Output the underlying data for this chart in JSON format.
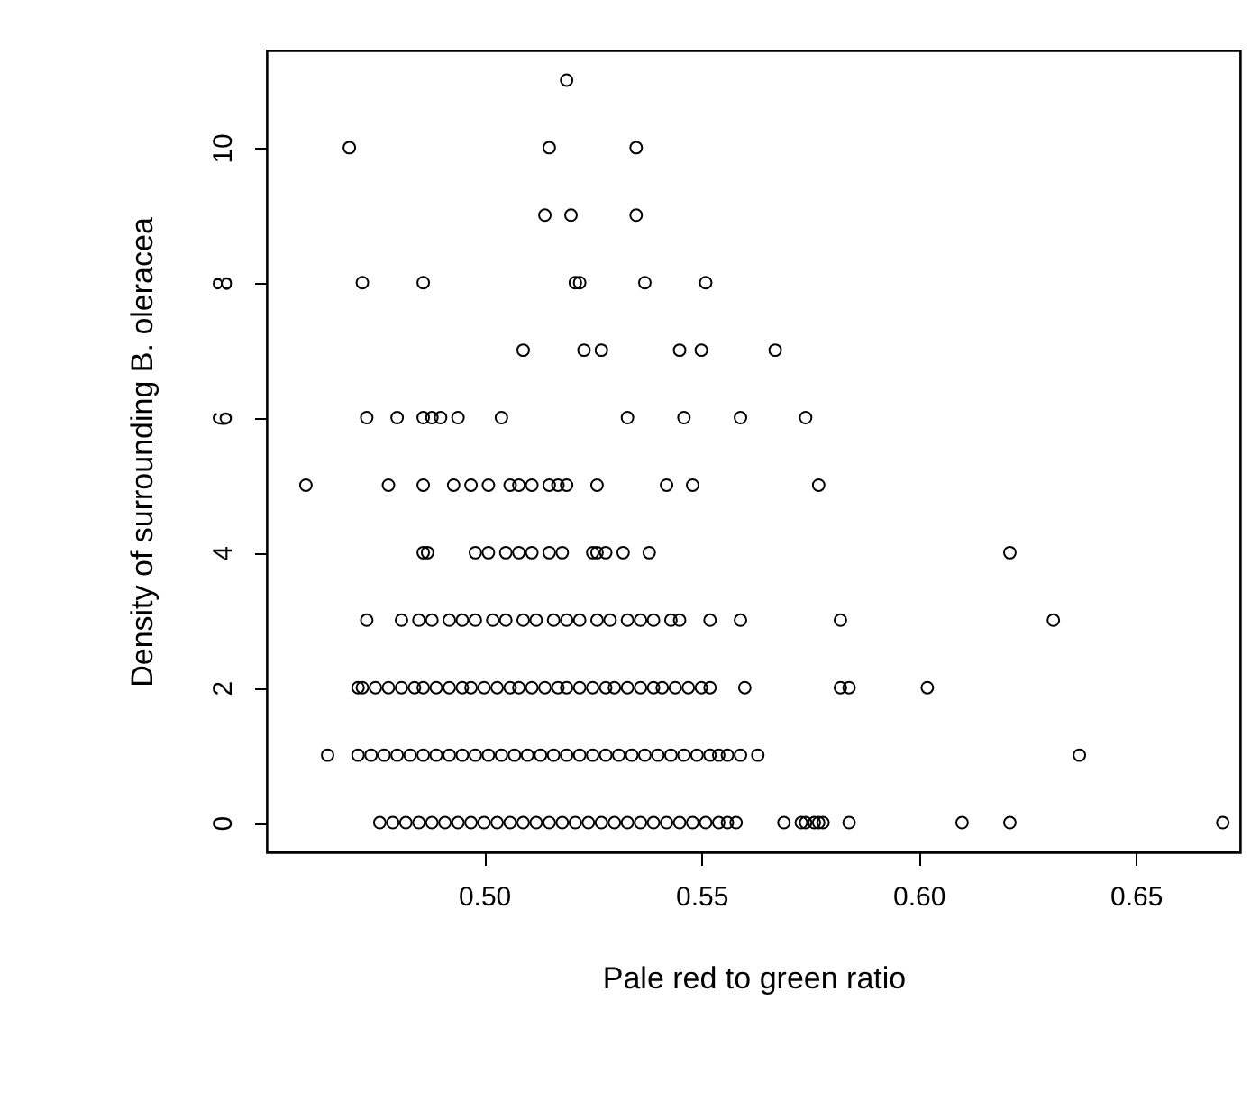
{
  "chart_data": {
    "type": "scatter",
    "xlabel": "Pale red to green ratio",
    "ylabel": "Density of surrounding B. oleracea",
    "marker": "circle",
    "grid": false,
    "legend": false,
    "xlim": [
      0.45,
      0.674
    ],
    "xticks": [
      {
        "value": 0.5,
        "label": "0.50"
      },
      0.55,
      {
        "value": 0.6,
        "label": "0.60"
      },
      0.65
    ],
    "ylim": [
      -0.44,
      11.44
    ],
    "yticks": [
      0,
      2,
      4,
      6,
      8,
      10
    ],
    "series": [
      {
        "color": "#000000",
        "x": [
          0.519,
          0.469,
          0.515,
          0.535,
          0.514,
          0.52,
          0.535,
          0.472,
          0.486,
          0.521,
          0.522,
          0.537,
          0.551,
          0.509,
          0.523,
          0.527,
          0.545,
          0.55,
          0.567,
          0.473,
          0.48,
          0.486,
          0.488,
          0.49,
          0.494,
          0.504,
          0.533,
          0.546,
          0.559,
          0.574,
          0.459,
          0.478,
          0.486,
          0.493,
          0.497,
          0.501,
          0.506,
          0.508,
          0.511,
          0.515,
          0.517,
          0.519,
          0.526,
          0.542,
          0.548,
          0.577,
          0.486,
          0.487,
          0.498,
          0.501,
          0.505,
          0.508,
          0.511,
          0.515,
          0.518,
          0.525,
          0.526,
          0.528,
          0.532,
          0.538,
          0.621,
          0.473,
          0.481,
          0.485,
          0.488,
          0.492,
          0.495,
          0.498,
          0.502,
          0.505,
          0.509,
          0.512,
          0.516,
          0.519,
          0.522,
          0.526,
          0.529,
          0.533,
          0.536,
          0.539,
          0.543,
          0.545,
          0.552,
          0.559,
          0.582,
          0.631,
          0.471,
          0.472,
          0.475,
          0.478,
          0.481,
          0.484,
          0.486,
          0.489,
          0.492,
          0.495,
          0.497,
          0.5,
          0.503,
          0.506,
          0.508,
          0.511,
          0.514,
          0.517,
          0.519,
          0.522,
          0.525,
          0.528,
          0.53,
          0.533,
          0.536,
          0.539,
          0.541,
          0.544,
          0.547,
          0.55,
          0.552,
          0.56,
          0.582,
          0.584,
          0.602,
          0.464,
          0.471,
          0.474,
          0.477,
          0.48,
          0.483,
          0.486,
          0.489,
          0.492,
          0.495,
          0.498,
          0.501,
          0.504,
          0.507,
          0.51,
          0.513,
          0.516,
          0.519,
          0.522,
          0.525,
          0.528,
          0.531,
          0.534,
          0.537,
          0.54,
          0.543,
          0.546,
          0.549,
          0.552,
          0.554,
          0.556,
          0.559,
          0.563,
          0.637,
          0.476,
          0.479,
          0.482,
          0.485,
          0.488,
          0.491,
          0.494,
          0.497,
          0.5,
          0.503,
          0.506,
          0.509,
          0.512,
          0.515,
          0.518,
          0.521,
          0.524,
          0.527,
          0.53,
          0.533,
          0.536,
          0.539,
          0.542,
          0.545,
          0.548,
          0.551,
          0.554,
          0.556,
          0.558,
          0.569,
          0.573,
          0.574,
          0.576,
          0.577,
          0.578,
          0.584,
          0.61,
          0.621,
          0.67
        ],
        "values": [
          11,
          10,
          10,
          10,
          9,
          9,
          9,
          8,
          8,
          8,
          8,
          8,
          8,
          7,
          7,
          7,
          7,
          7,
          7,
          6,
          6,
          6,
          6,
          6,
          6,
          6,
          6,
          6,
          6,
          6,
          5,
          5,
          5,
          5,
          5,
          5,
          5,
          5,
          5,
          5,
          5,
          5,
          5,
          5,
          5,
          5,
          4,
          4,
          4,
          4,
          4,
          4,
          4,
          4,
          4,
          4,
          4,
          4,
          4,
          4,
          4,
          3,
          3,
          3,
          3,
          3,
          3,
          3,
          3,
          3,
          3,
          3,
          3,
          3,
          3,
          3,
          3,
          3,
          3,
          3,
          3,
          3,
          3,
          3,
          3,
          3,
          2,
          2,
          2,
          2,
          2,
          2,
          2,
          2,
          2,
          2,
          2,
          2,
          2,
          2,
          2,
          2,
          2,
          2,
          2,
          2,
          2,
          2,
          2,
          2,
          2,
          2,
          2,
          2,
          2,
          2,
          2,
          2,
          2,
          2,
          2,
          1,
          1,
          1,
          1,
          1,
          1,
          1,
          1,
          1,
          1,
          1,
          1,
          1,
          1,
          1,
          1,
          1,
          1,
          1,
          1,
          1,
          1,
          1,
          1,
          1,
          1,
          1,
          1,
          1,
          1,
          1,
          1,
          1,
          1,
          0,
          0,
          0,
          0,
          0,
          0,
          0,
          0,
          0,
          0,
          0,
          0,
          0,
          0,
          0,
          0,
          0,
          0,
          0,
          0,
          0,
          0,
          0,
          0,
          0,
          0,
          0,
          0,
          0,
          0,
          0,
          0,
          0,
          0,
          0,
          0,
          0,
          0,
          0
        ]
      }
    ]
  }
}
